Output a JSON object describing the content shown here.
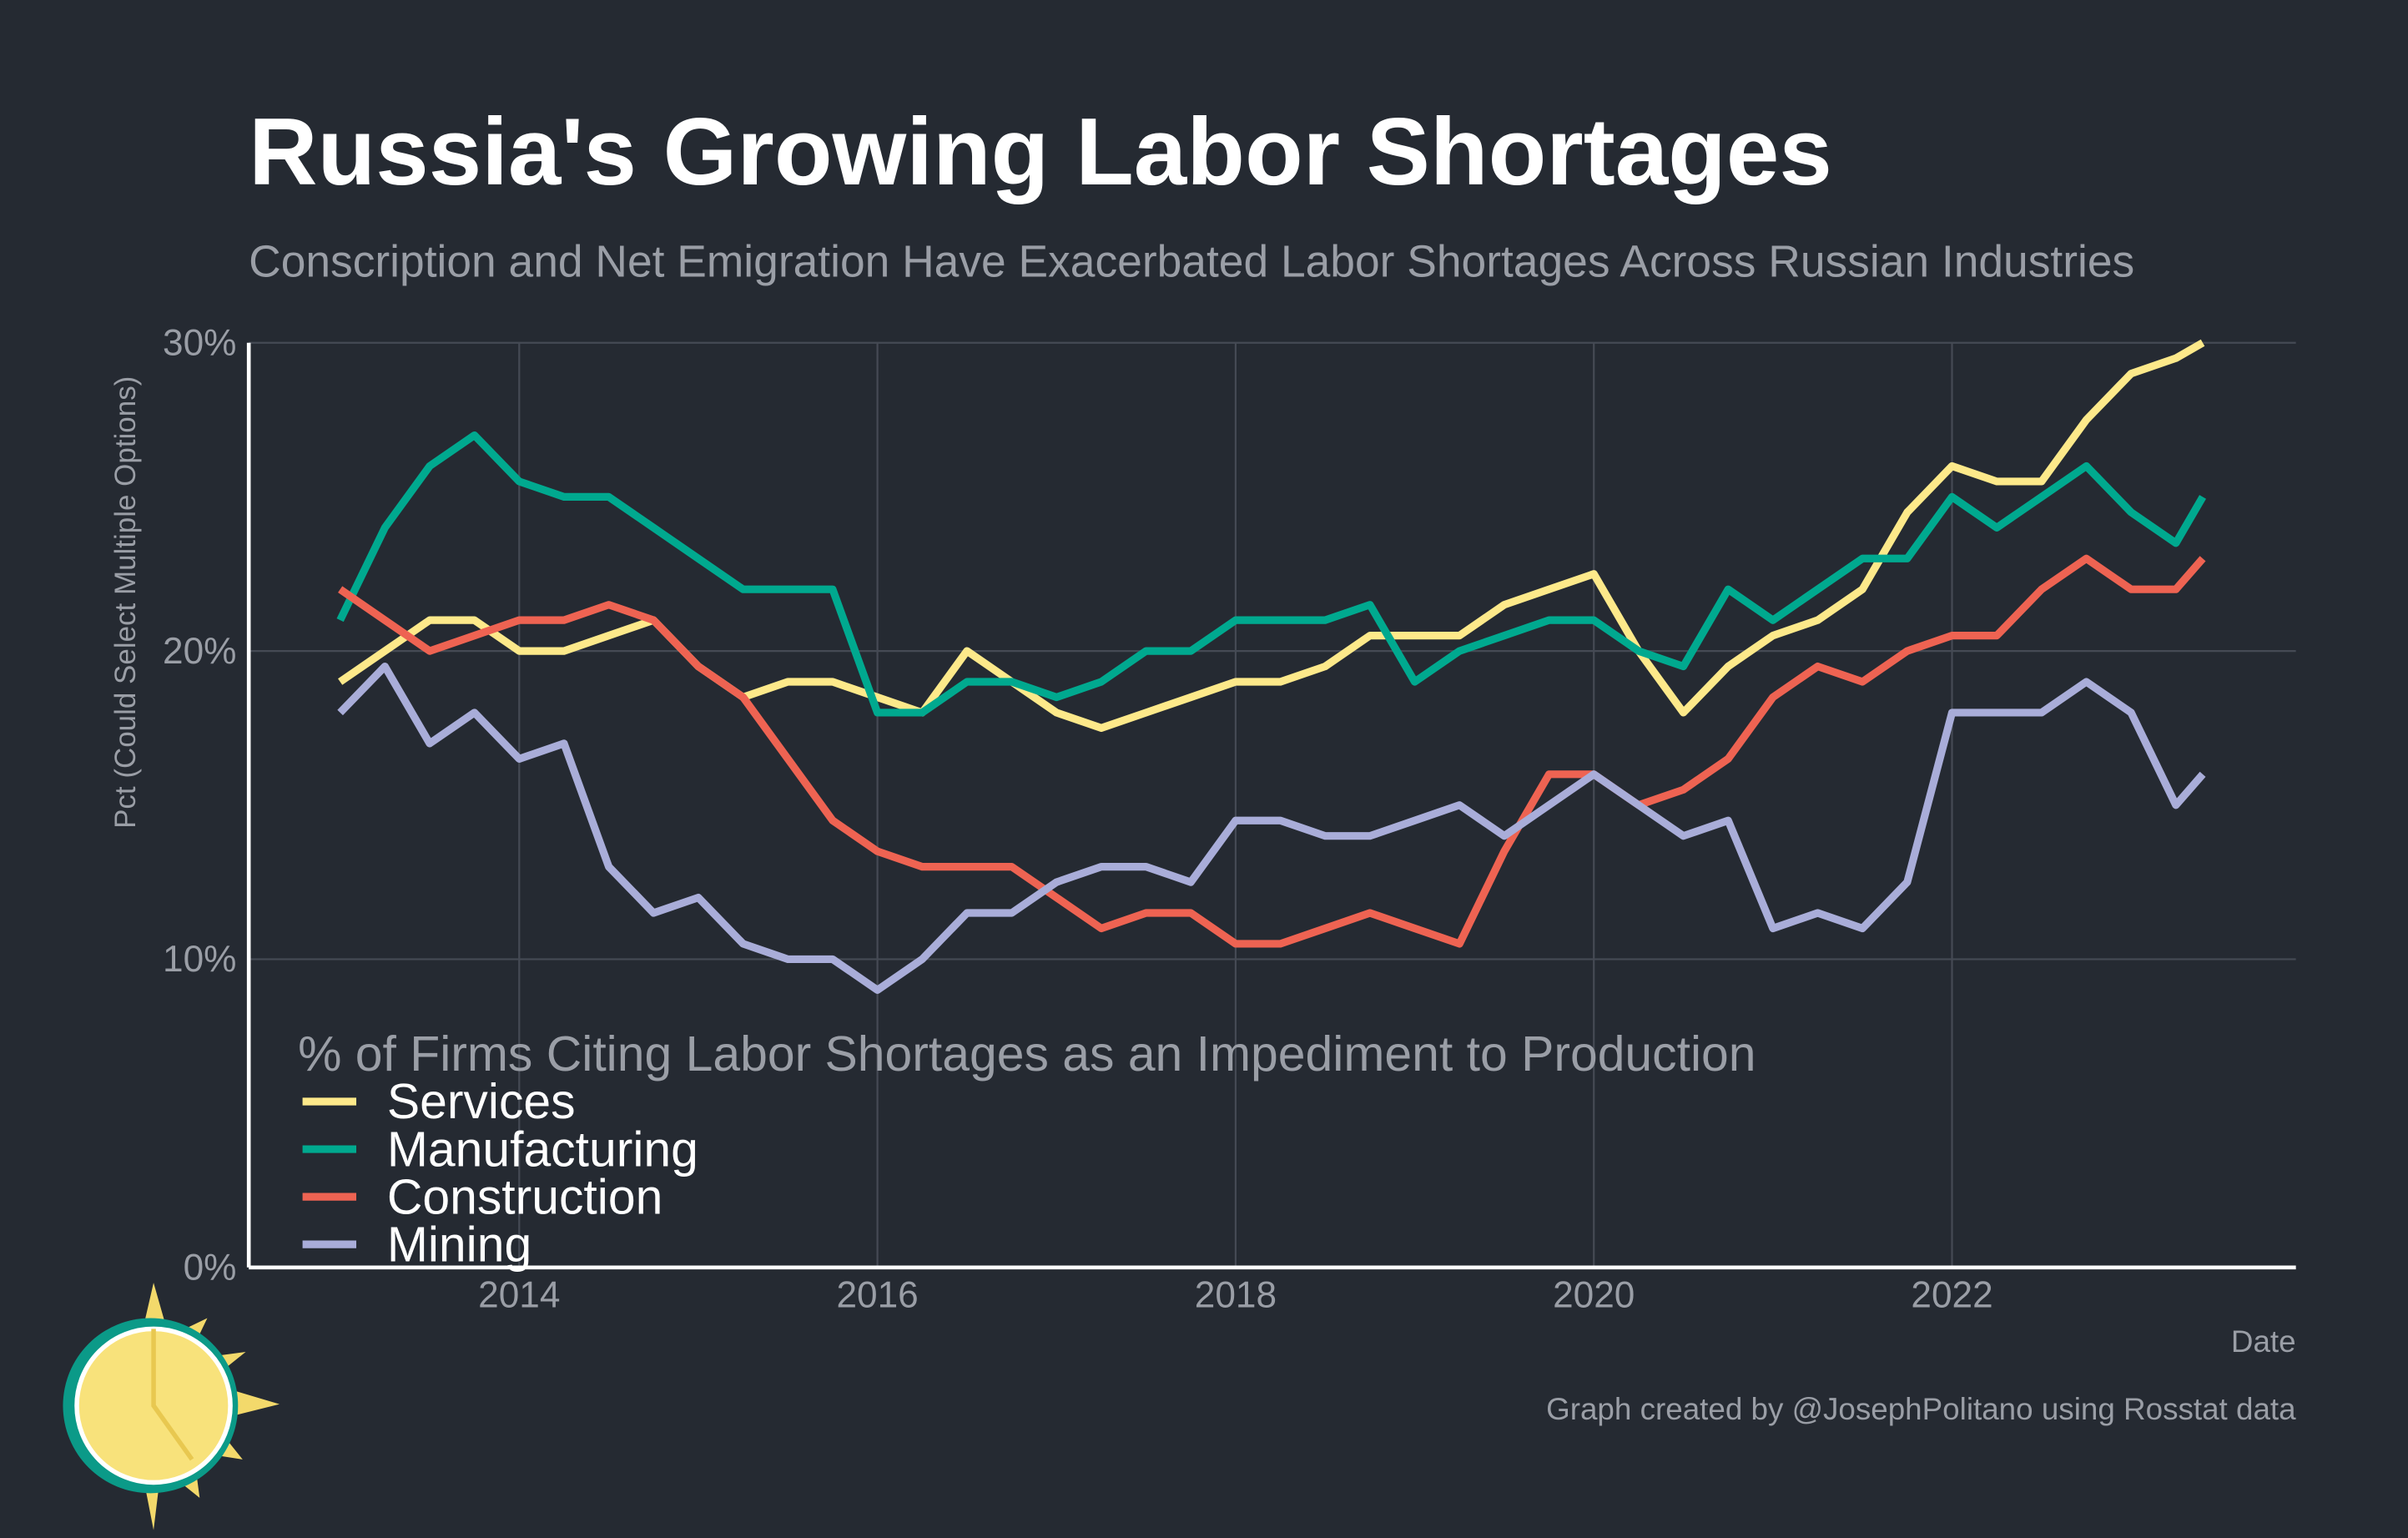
{
  "chart_data": {
    "type": "line",
    "title": "Russia's Growing Labor Shortages",
    "subtitle": "Conscription and Net Emigration Have Exacerbated Labor Shortages Across Russian Industries",
    "y_label": "Pct (Could Select Multiple Options)",
    "x_label": "Date",
    "legend_title": "% of Firms Citing Labor Shortages as an Impediment to Production",
    "caption": "Graph created by @JosephPolitano using Rosstat data",
    "legend": "bottom-left",
    "grid": true,
    "x": [
      2013.0,
      2013.25,
      2013.5,
      2013.75,
      2014.0,
      2014.25,
      2014.5,
      2014.75,
      2015.0,
      2015.25,
      2015.5,
      2015.75,
      2016.0,
      2016.25,
      2016.5,
      2016.75,
      2017.0,
      2017.25,
      2017.5,
      2017.75,
      2018.0,
      2018.25,
      2018.5,
      2018.75,
      2019.0,
      2019.25,
      2019.5,
      2019.75,
      2020.0,
      2020.25,
      2020.5,
      2020.75,
      2021.0,
      2021.25,
      2021.5,
      2021.75,
      2022.0,
      2022.25,
      2022.5,
      2022.75,
      2023.0,
      2023.25,
      2023.4
    ],
    "series": [
      {
        "name": "Services",
        "color": "#fde98a",
        "values": [
          19,
          20,
          21,
          21,
          20,
          20,
          20.5,
          21,
          19.5,
          18.5,
          19,
          19,
          18.5,
          18,
          20,
          19,
          18,
          17.5,
          18,
          18.5,
          19,
          19,
          19.5,
          20.5,
          20.5,
          20.5,
          21.5,
          22,
          22.5,
          20,
          18,
          19.5,
          20.5,
          21,
          22,
          24.5,
          26,
          25.5,
          25.5,
          27.5,
          29,
          29.5,
          30
        ]
      },
      {
        "name": "Manufacturing",
        "color": "#00a98f",
        "values": [
          21,
          24,
          26,
          27,
          25.5,
          25,
          25,
          24,
          23,
          22,
          22,
          22,
          18,
          18,
          19,
          19,
          18.5,
          19,
          20,
          20,
          21,
          21,
          21,
          21.5,
          19,
          20,
          20.5,
          21,
          21,
          20,
          19.5,
          22,
          21,
          22,
          23,
          23,
          25,
          24,
          25,
          26,
          24.5,
          23.5,
          25
        ]
      },
      {
        "name": "Construction",
        "color": "#ee6352",
        "values": [
          22,
          21,
          20,
          20.5,
          21,
          21,
          21.5,
          21,
          19.5,
          18.5,
          16.5,
          14.5,
          13.5,
          13,
          13,
          13,
          12,
          11,
          11.5,
          11.5,
          10.5,
          10.5,
          11,
          11.5,
          11,
          10.5,
          13.5,
          16,
          16,
          15,
          15.5,
          16.5,
          18.5,
          19.5,
          19,
          20,
          20.5,
          20.5,
          22,
          23,
          22,
          22,
          23
        ]
      },
      {
        "name": "Mining",
        "color": "#a9add9",
        "values": [
          18,
          19.5,
          17,
          18,
          16.5,
          17,
          13,
          11.5,
          12,
          10.5,
          10,
          10,
          9,
          10,
          11.5,
          11.5,
          12.5,
          13,
          13,
          12.5,
          14.5,
          14.5,
          14,
          14,
          14.5,
          15,
          14,
          15,
          16,
          15,
          14,
          14.5,
          11,
          11.5,
          11,
          12.5,
          18,
          18,
          18,
          19,
          18,
          15,
          16
        ]
      }
    ],
    "xlim": [
      2012.49,
      2023.92
    ],
    "xticks": [
      2014,
      2016,
      2018,
      2020,
      2022
    ],
    "ylim": [
      0,
      30
    ],
    "yticks": [
      {
        "value": 0,
        "label": "0%"
      },
      {
        "value": 10,
        "label": "10%"
      },
      {
        "value": 20,
        "label": "20%"
      },
      {
        "value": 30,
        "label": "30%"
      }
    ]
  }
}
